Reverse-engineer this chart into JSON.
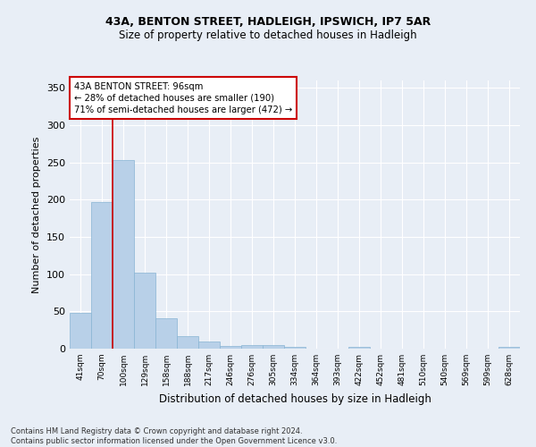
{
  "title1": "43A, BENTON STREET, HADLEIGH, IPSWICH, IP7 5AR",
  "title2": "Size of property relative to detached houses in Hadleigh",
  "xlabel": "Distribution of detached houses by size in Hadleigh",
  "ylabel": "Number of detached properties",
  "footer1": "Contains HM Land Registry data © Crown copyright and database right 2024.",
  "footer2": "Contains public sector information licensed under the Open Government Licence v3.0.",
  "bin_labels": [
    "41sqm",
    "70sqm",
    "100sqm",
    "129sqm",
    "158sqm",
    "188sqm",
    "217sqm",
    "246sqm",
    "276sqm",
    "305sqm",
    "334sqm",
    "364sqm",
    "393sqm",
    "422sqm",
    "452sqm",
    "481sqm",
    "510sqm",
    "540sqm",
    "569sqm",
    "599sqm",
    "628sqm"
  ],
  "bar_values": [
    48,
    197,
    253,
    102,
    41,
    17,
    10,
    4,
    5,
    5,
    3,
    0,
    0,
    3,
    0,
    0,
    0,
    0,
    0,
    0,
    3
  ],
  "bar_color": "#b8d0e8",
  "bar_edgecolor": "#88b4d4",
  "annotation_line1": "43A BENTON STREET: 96sqm",
  "annotation_line2": "← 28% of detached houses are smaller (190)",
  "annotation_line3": "71% of semi-detached houses are larger (472) →",
  "property_line_x": 1.5,
  "ylim": [
    0,
    360
  ],
  "yticks": [
    0,
    50,
    100,
    150,
    200,
    250,
    300,
    350
  ],
  "background_color": "#e8eef6",
  "grid_color": "#ffffff",
  "annotation_box_facecolor": "#ffffff",
  "annotation_box_edgecolor": "#cc0000",
  "property_line_color": "#cc0000"
}
